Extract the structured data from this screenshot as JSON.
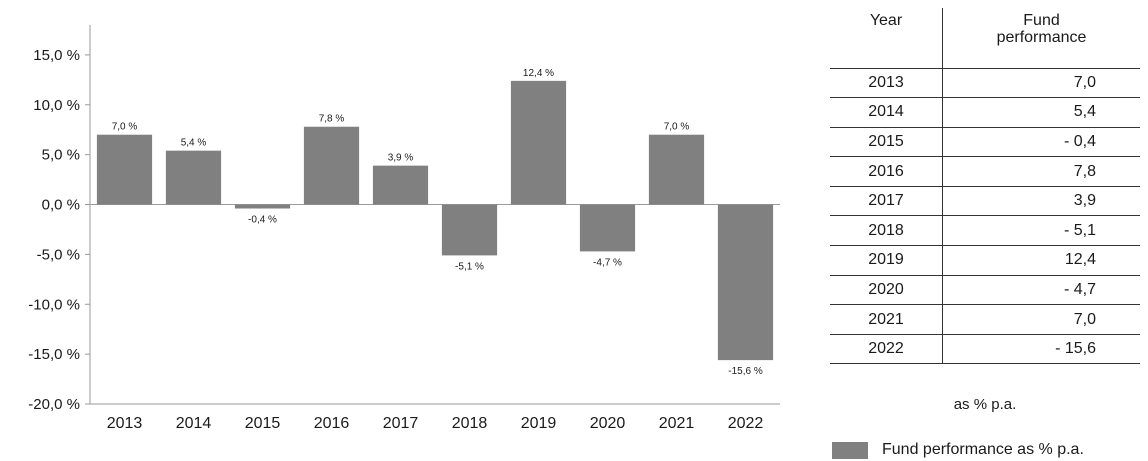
{
  "chart_data": {
    "type": "bar",
    "categories": [
      "2013",
      "2014",
      "2015",
      "2016",
      "2017",
      "2018",
      "2019",
      "2020",
      "2021",
      "2022"
    ],
    "values": [
      7.0,
      5.4,
      -0.4,
      7.8,
      3.9,
      -5.1,
      12.4,
      -4.7,
      7.0,
      -15.6
    ],
    "data_labels": [
      "7,0 %",
      "5,4 %",
      "-0,4 %",
      "7,8 %",
      "3,9 %",
      "-5,1 %",
      "12,4 %",
      "-4,7 %",
      "7,0 %",
      "-15,6 %"
    ],
    "y_ticks": [
      15,
      10,
      5,
      0,
      -5,
      -10,
      -15,
      -20
    ],
    "y_tick_labels": [
      "15,0 %",
      "10,0 %",
      "5,0 %",
      "0,0 %",
      "-5,0 %",
      "-10,0 %",
      "-15,0 %",
      "-20,0 %"
    ],
    "ylim": [
      -20,
      18
    ],
    "bar_color": "#808080",
    "grid": false,
    "title": "",
    "xlabel": "",
    "ylabel": ""
  },
  "table": {
    "header_year": "Year",
    "header_perf_line1": "Fund",
    "header_perf_line2": "performance",
    "rows": [
      {
        "year": "2013",
        "value": "7,0"
      },
      {
        "year": "2014",
        "value": "5,4"
      },
      {
        "year": "2015",
        "value": "- 0,4"
      },
      {
        "year": "2016",
        "value": "7,8"
      },
      {
        "year": "2017",
        "value": "3,9"
      },
      {
        "year": "2018",
        "value": "- 5,1"
      },
      {
        "year": "2019",
        "value": "12,4"
      },
      {
        "year": "2020",
        "value": "- 4,7"
      },
      {
        "year": "2021",
        "value": "7,0"
      },
      {
        "year": "2022",
        "value": "- 15,6"
      }
    ]
  },
  "units_note": "as % p.a.",
  "legend": {
    "label": "Fund performance as % p.a.",
    "position": "bottom-right"
  }
}
